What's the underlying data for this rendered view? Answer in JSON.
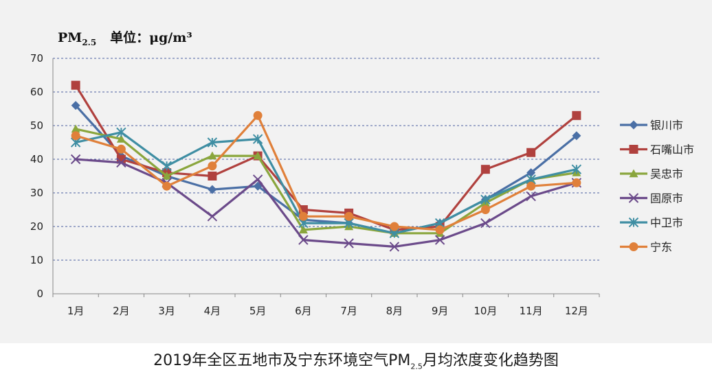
{
  "caption": {
    "prefix": "2019年全区五地市及宁东环境空气PM",
    "sub": "2.5",
    "suffix": "月均浓度变化趋势图"
  },
  "unit_label": {
    "pm_main": "PM",
    "pm_sub": "2.5",
    "unit_text": "单位：μg/m³"
  },
  "chart_data": {
    "type": "line",
    "x": [
      "1月",
      "2月",
      "3月",
      "4月",
      "5月",
      "6月",
      "7月",
      "8月",
      "9月",
      "10月",
      "11月",
      "12月"
    ],
    "ylim": [
      0,
      70
    ],
    "yticks": [
      0,
      10,
      20,
      30,
      40,
      50,
      60,
      70
    ],
    "grid": true,
    "legend_position": "right",
    "series": [
      {
        "name": "银川市",
        "color": "#4a6fa5",
        "marker": "diamond",
        "values": [
          56,
          41,
          35,
          31,
          32,
          22,
          21,
          18,
          21,
          28,
          36,
          47
        ]
      },
      {
        "name": "石嘴山市",
        "color": "#b0413e",
        "marker": "square",
        "values": [
          62,
          40,
          36,
          35,
          41,
          25,
          24,
          19,
          20,
          37,
          42,
          53
        ]
      },
      {
        "name": "吴忠市",
        "color": "#8aa63d",
        "marker": "triangle",
        "values": [
          49,
          46,
          35,
          41,
          41,
          19,
          20,
          18,
          18,
          27,
          34,
          36
        ]
      },
      {
        "name": "固原市",
        "color": "#6b4a8a",
        "marker": "x",
        "values": [
          40,
          39,
          33,
          23,
          34,
          16,
          15,
          14,
          16,
          21,
          29,
          33
        ]
      },
      {
        "name": "中卫市",
        "color": "#3f8ea3",
        "marker": "star",
        "values": [
          45,
          48,
          38,
          45,
          46,
          21,
          21,
          18,
          21,
          28,
          34,
          37
        ]
      },
      {
        "name": "宁东",
        "color": "#e0803a",
        "marker": "circle",
        "values": [
          47,
          43,
          32,
          38,
          53,
          23,
          23,
          20,
          19,
          25,
          32,
          33
        ]
      }
    ]
  }
}
